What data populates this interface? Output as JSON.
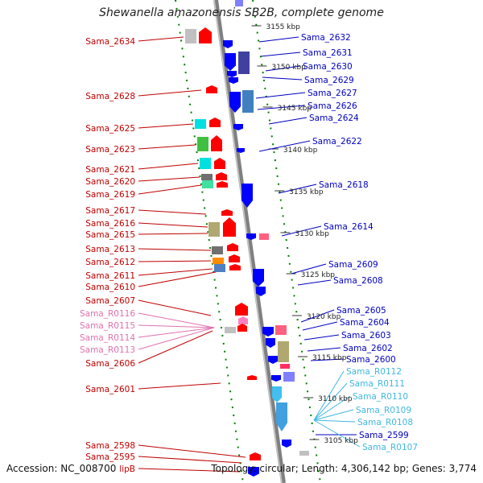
{
  "title": "Shewanella amazonensis SB2B, complete genome",
  "footer": {
    "accession": "Accession: NC_008700",
    "summary": "Topology: circular; Length: 4,306,142 bp; Genes: 3,774"
  },
  "colors": {
    "backbone": "#808080",
    "ruler": "#008000",
    "forward_label": "#c00000",
    "reverse_label": "#0000c0",
    "rna_forward_label": "#e070b0",
    "rna_reverse_label": "#40b8e0"
  },
  "ticks": [
    "3155 kbp",
    "3150 kbp",
    "3145 kbp",
    "3140 kbp",
    "3135 kbp",
    "3130 kbp",
    "3125 kbp",
    "3120 kbp",
    "3115 kbp",
    "3110 kbp",
    "3105 kbp"
  ],
  "forward_genes": [
    "Sama_2634",
    "Sama_2628",
    "Sama_2625",
    "Sama_2623",
    "Sama_2621",
    "Sama_2620",
    "Sama_2619",
    "Sama_2617",
    "Sama_2616",
    "Sama_2615",
    "Sama_2613",
    "Sama_2612",
    "Sama_2611",
    "Sama_2610",
    "Sama_2607",
    "Sama_2606",
    "Sama_2601",
    "Sama_2598",
    "Sama_2595",
    "lipB"
  ],
  "forward_rnas": [
    "Sama_R0116",
    "Sama_R0115",
    "Sama_R0114",
    "Sama_R0113"
  ],
  "reverse_genes": [
    "Sama_2632",
    "Sama_2631",
    "Sama_2630",
    "Sama_2629",
    "Sama_2627",
    "Sama_2626",
    "Sama_2624",
    "Sama_2622",
    "Sama_2618",
    "Sama_2614",
    "Sama_2609",
    "Sama_2608",
    "Sama_2605",
    "Sama_2604",
    "Sama_2603",
    "Sama_2602",
    "Sama_2600",
    "Sama_2599"
  ],
  "reverse_rnas": [
    "Sama_R0112",
    "Sama_R0111",
    "Sama_R0110",
    "Sama_R0109",
    "Sama_R0108",
    "Sama_R0107"
  ]
}
